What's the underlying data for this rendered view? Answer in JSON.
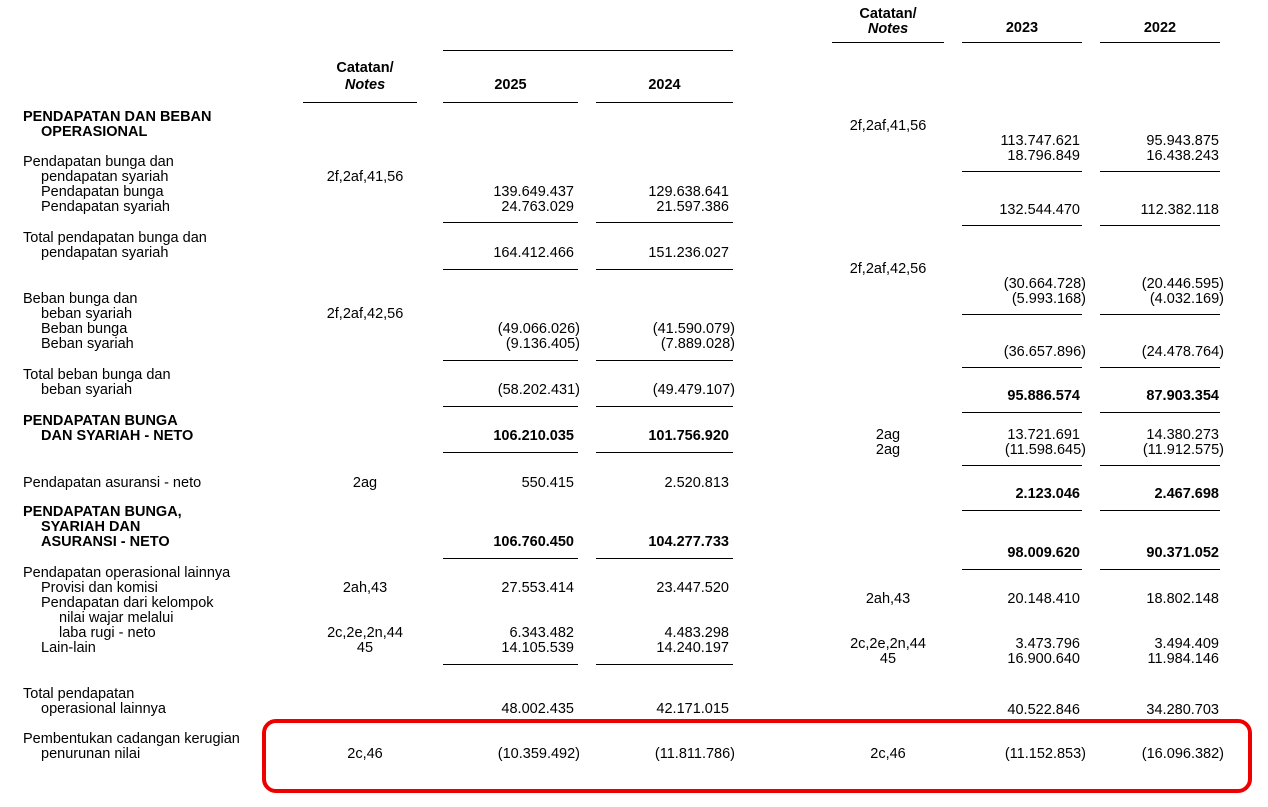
{
  "left": {
    "header": {
      "notes_line1": "Catatan/",
      "notes_line2": "Notes",
      "year_a": "2025",
      "year_b": "2024"
    },
    "rows": {
      "ops_title_1": "PENDAPATAN DAN BEBAN",
      "ops_title_2": "OPERASIONAL",
      "int_income_1": "Pendapatan bunga dan",
      "int_income_2": "pendapatan syariah",
      "int_income_notes": "2f,2af,41,56",
      "pend_bunga": {
        "label": "Pendapatan bunga",
        "a": "139.649.437",
        "b": "129.638.641"
      },
      "pend_syariah": {
        "label": "Pendapatan syariah",
        "a": "24.763.029",
        "b": "21.597.386"
      },
      "total_int_income": {
        "label1": "Total pendapatan bunga dan",
        "label2": "pendapatan syariah",
        "a": "164.412.466",
        "b": "151.236.027"
      },
      "int_exp_1": "Beban bunga dan",
      "int_exp_2": "beban syariah",
      "int_exp_notes": "2f,2af,42,56",
      "beban_bunga": {
        "label": "Beban bunga",
        "a": "(49.066.026)",
        "b": "(41.590.079)"
      },
      "beban_syariah": {
        "label": "Beban syariah",
        "a": "(9.136.405)",
        "b": "(7.889.028)"
      },
      "total_int_exp": {
        "label1": "Total beban bunga dan",
        "label2": "beban syariah",
        "a": "(58.202.431)",
        "b": "(49.479.107)"
      },
      "net_int": {
        "label1": "PENDAPATAN BUNGA",
        "label2": "DAN SYARIAH - NETO",
        "a": "106.210.035",
        "b": "101.756.920"
      },
      "insurance": {
        "label": "Pendapatan asuransi - neto",
        "notes": "2ag",
        "a": "550.415",
        "b": "2.520.813"
      },
      "net_ins": {
        "label1": "PENDAPATAN BUNGA,",
        "label2": "SYARIAH DAN",
        "label3": "ASURANSI - NETO",
        "a": "106.760.450",
        "b": "104.277.733"
      },
      "other_title": "Pendapatan operasional lainnya",
      "provisi": {
        "label": "Provisi dan komisi",
        "notes": "2ah,43",
        "a": "27.553.414",
        "b": "23.447.520"
      },
      "fv_group": {
        "label1": "Pendapatan dari kelompok",
        "label2": "nilai wajar melalui",
        "label3": "laba rugi - neto",
        "notes": "2c,2e,2n,44",
        "a": "6.343.482",
        "b": "4.483.298"
      },
      "lain": {
        "label": "Lain-lain",
        "notes": "45",
        "a": "14.105.539",
        "b": "14.240.197"
      },
      "total_other": {
        "label1": "Total pendapatan",
        "label2": "operasional lainnya",
        "a": "48.002.435",
        "b": "42.171.015"
      },
      "impairment": {
        "label1": "Pembentukan cadangan kerugian",
        "label2": "penurunan nilai",
        "notes": "2c,46",
        "a": "(10.359.492)",
        "b": "(11.811.786)"
      }
    }
  },
  "right": {
    "header": {
      "notes_line1": "Catatan/",
      "notes_line2": "Notes",
      "year_a": "2023",
      "year_b": "2022"
    },
    "notes_int_income": "2f,2af,41,56",
    "pend_bunga": {
      "a": "113.747.621",
      "b": "95.943.875"
    },
    "pend_syariah": {
      "a": "18.796.849",
      "b": "16.438.243"
    },
    "total_int_income": {
      "a": "132.544.470",
      "b": "112.382.118"
    },
    "notes_int_exp": "2f,2af,42,56",
    "beban_bunga": {
      "a": "(30.664.728)",
      "b": "(20.446.595)"
    },
    "beban_syariah": {
      "a": "(5.993.168)",
      "b": "(4.032.169)"
    },
    "total_int_exp": {
      "a": "(36.657.896)",
      "b": "(24.478.764)"
    },
    "net_int": {
      "a": "95.886.574",
      "b": "87.903.354"
    },
    "ins_1": {
      "notes": "2ag",
      "a": "13.721.691",
      "b": "14.380.273"
    },
    "ins_2": {
      "notes": "2ag",
      "a": "(11.598.645)",
      "b": "(11.912.575)"
    },
    "ins_total": {
      "a": "2.123.046",
      "b": "2.467.698"
    },
    "net_ins": {
      "a": "98.009.620",
      "b": "90.371.052"
    },
    "provisi": {
      "notes": "2ah,43",
      "a": "20.148.410",
      "b": "18.802.148"
    },
    "fv_group": {
      "notes": "2c,2e,2n,44",
      "a": "3.473.796",
      "b": "3.494.409"
    },
    "lain": {
      "notes": "45",
      "a": "16.900.640",
      "b": "11.984.146"
    },
    "total_other": {
      "a": "40.522.846",
      "b": "34.280.703"
    },
    "impairment": {
      "notes": "2c,46",
      "a": "(11.152.853)",
      "b": "(16.096.382)"
    }
  },
  "highlight_color": "#ee0000"
}
